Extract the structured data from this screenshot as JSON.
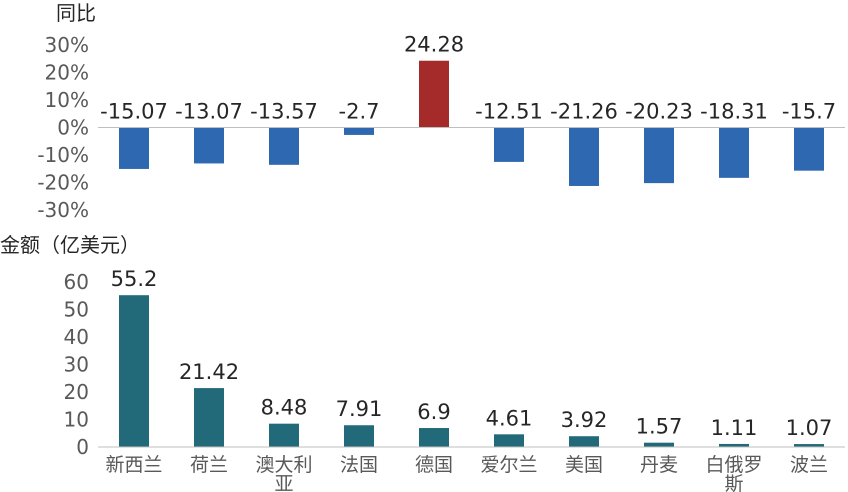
{
  "chart_data": [
    {
      "type": "bar",
      "ylabel": "同比",
      "categories": [
        "新西兰",
        "荷兰",
        "澳大利亚",
        "法国",
        "德国",
        "爱尔兰",
        "美国",
        "丹麦",
        "白俄罗斯",
        "波兰"
      ],
      "values": [
        -15.07,
        -13.07,
        -13.57,
        -2.7,
        24.28,
        -12.51,
        -21.26,
        -20.23,
        -18.31,
        -15.7
      ],
      "value_labels": [
        "-15.07",
        "-13.07",
        "-13.57",
        "-2.7",
        "24.28",
        "-12.51",
        "-21.26",
        "-20.23",
        "-18.31",
        "-15.7"
      ],
      "ylim": [
        -30,
        30
      ],
      "yticks": [
        "30%",
        "20%",
        "10%",
        "0%",
        "-10%",
        "-20%",
        "-30%"
      ],
      "colors": {
        "negative": "#2E68B0",
        "positive": "#A52A2A"
      }
    },
    {
      "type": "bar",
      "ylabel": "金额（亿美元）",
      "categories": [
        "新西兰",
        "荷兰",
        "澳大利亚",
        "法国",
        "德国",
        "爱尔兰",
        "美国",
        "丹麦",
        "白俄罗斯",
        "波兰"
      ],
      "values": [
        55.2,
        21.42,
        8.48,
        7.91,
        6.9,
        4.61,
        3.92,
        1.57,
        1.11,
        1.07
      ],
      "value_labels": [
        "55.2",
        "21.42",
        "8.48",
        "7.91",
        "6.9",
        "4.61",
        "3.92",
        "1.57",
        "1.11",
        "1.07"
      ],
      "ylim": [
        0,
        60
      ],
      "yticks": [
        "60",
        "50",
        "40",
        "30",
        "20",
        "10",
        "0"
      ],
      "colors": {
        "bar": "#226A7A"
      }
    }
  ]
}
